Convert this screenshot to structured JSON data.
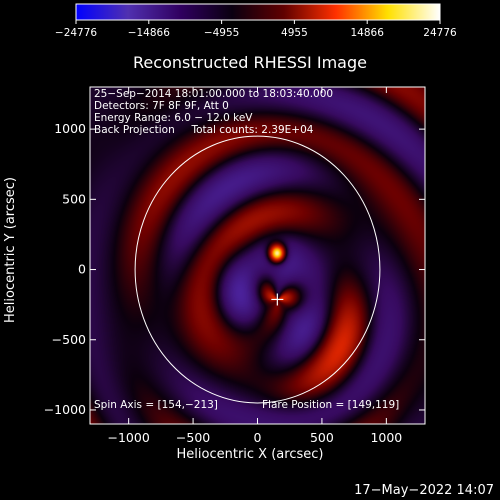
{
  "chart_data": {
    "type": "heatmap",
    "title": "Reconstructed RHESSI Image",
    "xlabel": "Heliocentric X (arcsec)",
    "ylabel": "Heliocentric Y (arcsec)",
    "xlim": [
      -1300,
      1300
    ],
    "ylim": [
      -1100,
      1300
    ],
    "x_ticks": [
      -1000,
      -500,
      0,
      500,
      1000
    ],
    "y_ticks": [
      -1000,
      -500,
      0,
      500,
      1000
    ],
    "x_tick_labels": [
      "−1000",
      "−500",
      "0",
      "500",
      "1000"
    ],
    "y_tick_labels": [
      "−1000",
      "−500",
      "0",
      "500",
      "1000"
    ],
    "colorbar": {
      "min": -24776,
      "max": 24776,
      "tick_values": [
        -24776,
        -14866,
        -4955,
        4955,
        14866,
        24776
      ],
      "tick_labels": [
        "−24776",
        "−14866",
        "−4955",
        "4955",
        "14866",
        "24776"
      ]
    },
    "annotations": [
      "25−Sep−2014 18:01:00.000 to 18:03:40.000",
      "Detectors: 7F 8F 9F, Att 0",
      "Energy Range: 6.0 − 12.0 keV",
      "Back Projection     Total counts: 2.39E+04"
    ],
    "spin_axis": "Spin Axis = [154,−213]",
    "flare_position": "Flare Position = [149,119]",
    "spin_axis_xy": [
      154,
      -213
    ],
    "flare_position_xy": [
      149,
      119
    ],
    "solar_disk_radius": 950,
    "timestamp": "17−May−2022 14:07",
    "colors": {
      "background": "#000000",
      "text": "#ffffff",
      "colormap": [
        "#0000ff",
        "#5030b0",
        "#300060",
        "#0a0010",
        "#600000",
        "#ff3000",
        "#ffe000",
        "#ffffff"
      ]
    }
  }
}
